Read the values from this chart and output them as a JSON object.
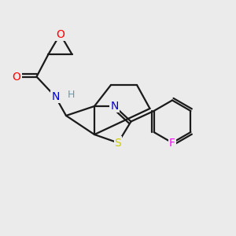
{
  "background_color": "#ebebeb",
  "bond_color": "#1a1a1a",
  "atom_colors": {
    "O": "#ff0000",
    "N": "#0000cc",
    "S": "#cccc00",
    "F": "#ff00ff",
    "H": "#6699aa"
  },
  "lw": 1.6,
  "fontsize": 10,
  "xlim": [
    0,
    10
  ],
  "ylim": [
    0,
    10
  ]
}
